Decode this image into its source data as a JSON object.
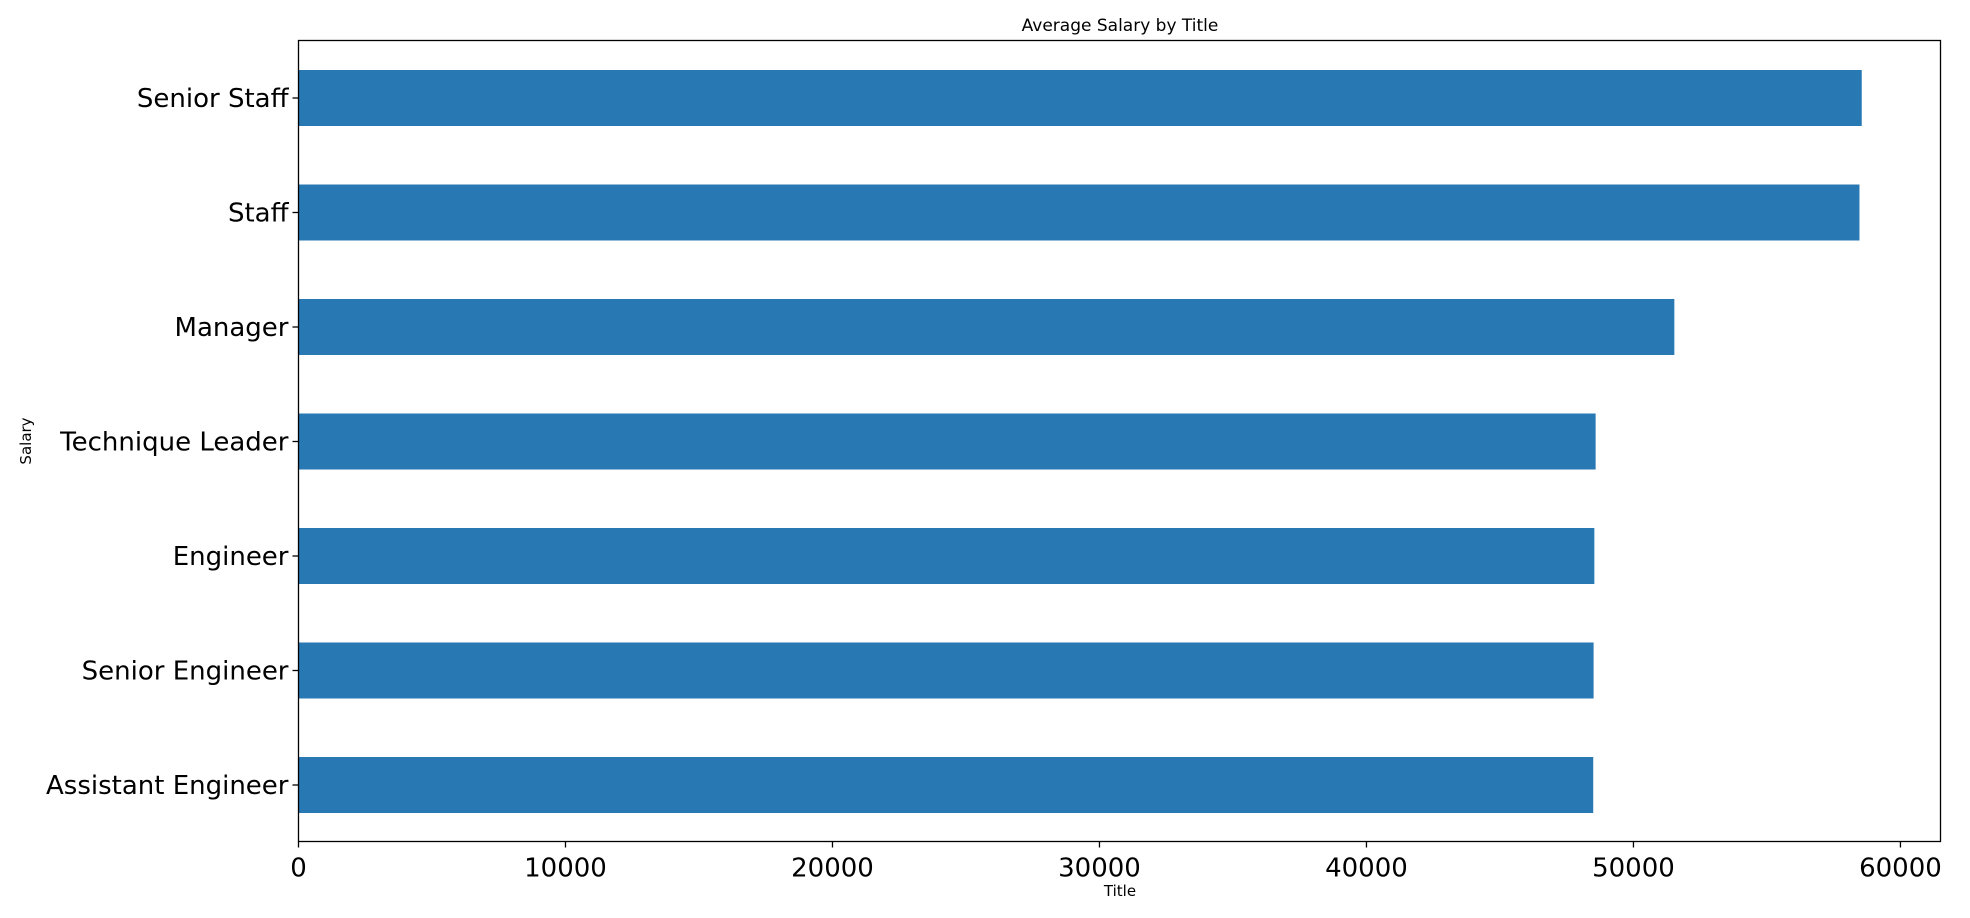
{
  "chart_data": {
    "type": "bar",
    "orientation": "horizontal",
    "title": "Average Salary by Title",
    "xlabel": "Title",
    "ylabel": "Salary",
    "categories": [
      "Senior Staff",
      "Staff",
      "Manager",
      "Technique Leader",
      "Engineer",
      "Senior Engineer",
      "Assistant Engineer"
    ],
    "values": [
      58550,
      58465,
      51531,
      48583,
      48535,
      48507,
      48493
    ],
    "xlim": [
      0,
      61500
    ],
    "xticks": [
      0,
      10000,
      20000,
      30000,
      40000,
      50000,
      60000
    ],
    "xtick_labels": [
      "0",
      "10000",
      "20000",
      "30000",
      "40000",
      "50000",
      "60000"
    ],
    "bar_color": "#2878b4",
    "grid": false,
    "legend": "none"
  }
}
